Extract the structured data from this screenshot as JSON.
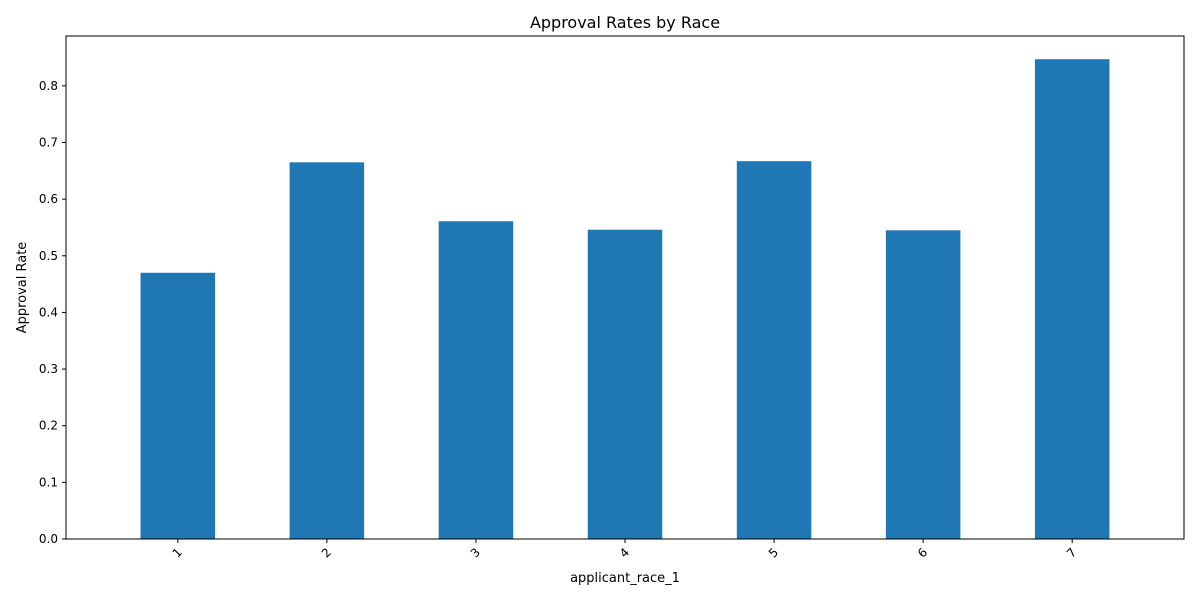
{
  "chart_data": {
    "type": "bar",
    "title": "Approval Rates by Race",
    "xlabel": "applicant_race_1",
    "ylabel": "Approval Rate",
    "categories": [
      "1",
      "2",
      "3",
      "4",
      "5",
      "6",
      "7"
    ],
    "values": [
      0.47,
      0.665,
      0.561,
      0.546,
      0.667,
      0.545,
      0.847
    ],
    "ylim": [
      0,
      0.888
    ],
    "yticks": [
      0.0,
      0.1,
      0.2,
      0.3,
      0.4,
      0.5,
      0.6,
      0.7,
      0.8
    ],
    "ytick_labels": [
      "0.0",
      "0.1",
      "0.2",
      "0.3",
      "0.4",
      "0.5",
      "0.6",
      "0.7",
      "0.8"
    ],
    "xtick_rotation": 45,
    "grid": false,
    "legend": false,
    "colors": {
      "bar": "#1f77b4",
      "axis": "#000000",
      "background": "#ffffff"
    }
  }
}
